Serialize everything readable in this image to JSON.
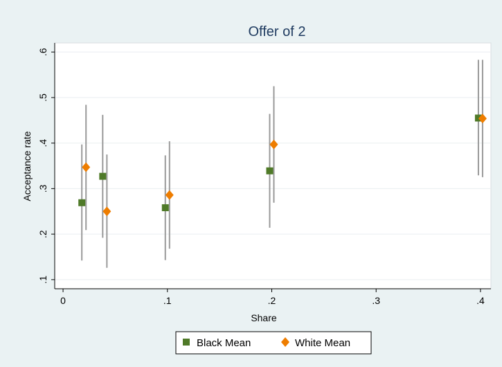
{
  "chart_data": {
    "type": "scatter",
    "title": "Offer of 2",
    "xlabel": "Share",
    "ylabel": "Acceptance rate",
    "xticks": [
      {
        "value": 0,
        "label": "0"
      },
      {
        "value": 0.1,
        "label": ".1"
      },
      {
        "value": 0.2,
        "label": ".2"
      },
      {
        "value": 0.3,
        "label": ".3"
      },
      {
        "value": 0.4,
        "label": ".4"
      }
    ],
    "yticks": [
      {
        "value": 0.1,
        "label": ".1"
      },
      {
        "value": 0.2,
        "label": ".2"
      },
      {
        "value": 0.3,
        "label": ".3"
      },
      {
        "value": 0.4,
        "label": ".4"
      },
      {
        "value": 0.5,
        "label": ".5"
      },
      {
        "value": 0.6,
        "label": ".6"
      }
    ],
    "xlim": [
      -0.008,
      0.41
    ],
    "ylim": [
      0.08,
      0.62
    ],
    "grid": "horizontal",
    "legend_position": "bottom",
    "series": [
      {
        "name": "Black Mean",
        "marker": "square",
        "color": "#4f7a28",
        "points": [
          {
            "x": 0.018,
            "y": 0.269,
            "lo": 0.142,
            "hi": 0.397
          },
          {
            "x": 0.038,
            "y": 0.327,
            "lo": 0.192,
            "hi": 0.462
          },
          {
            "x": 0.098,
            "y": 0.258,
            "lo": 0.143,
            "hi": 0.373
          },
          {
            "x": 0.198,
            "y": 0.339,
            "lo": 0.214,
            "hi": 0.464
          },
          {
            "x": 0.398,
            "y": 0.455,
            "lo": 0.329,
            "hi": 0.583
          }
        ]
      },
      {
        "name": "White Mean",
        "marker": "diamond",
        "color": "#ee7d00",
        "points": [
          {
            "x": 0.022,
            "y": 0.347,
            "lo": 0.209,
            "hi": 0.484
          },
          {
            "x": 0.042,
            "y": 0.25,
            "lo": 0.126,
            "hi": 0.375
          },
          {
            "x": 0.102,
            "y": 0.286,
            "lo": 0.168,
            "hi": 0.404
          },
          {
            "x": 0.202,
            "y": 0.397,
            "lo": 0.269,
            "hi": 0.525
          },
          {
            "x": 0.402,
            "y": 0.454,
            "lo": 0.325,
            "hi": 0.583
          }
        ]
      }
    ],
    "errorbar_color": "#999999"
  }
}
